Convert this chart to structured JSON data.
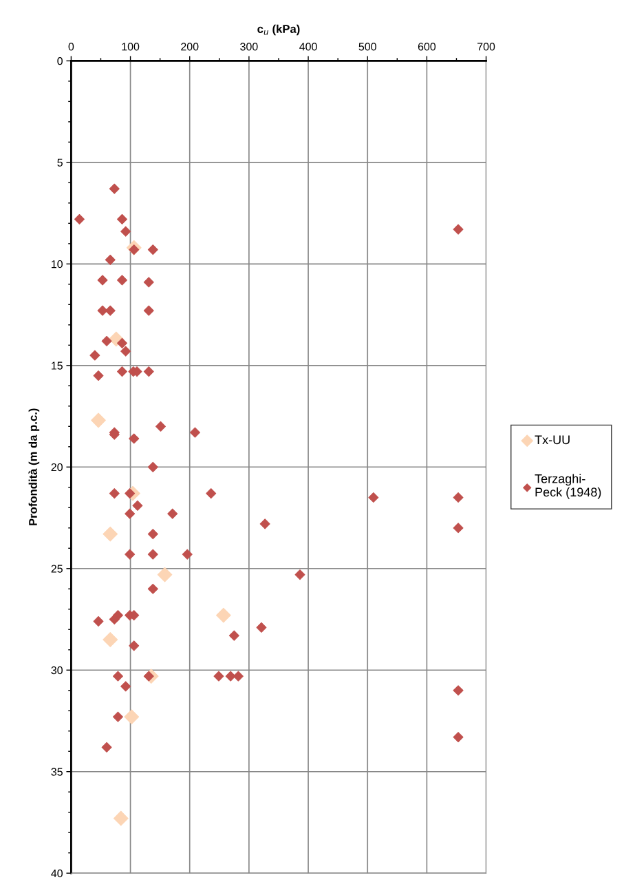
{
  "chart_data": {
    "type": "scatter",
    "xlabel": "c$_{u}$ (kPa)",
    "ylabel": "Profondità (m da p.c.)",
    "xlim": [
      0,
      700
    ],
    "ylim": [
      40,
      0
    ],
    "xticks": [
      0,
      {
        "value": 50,
        "label": null
      },
      100,
      {
        "value": 150,
        "label": null
      },
      200,
      {
        "value": 250,
        "label": null
      },
      300,
      {
        "value": 350,
        "label": null
      },
      400,
      {
        "value": 450,
        "label": null
      },
      500,
      {
        "value": 550,
        "label": null
      },
      600,
      {
        "value": 650,
        "label": null
      },
      700
    ],
    "yticks": [
      0,
      {
        "value": 1,
        "label": null
      },
      {
        "value": 2,
        "label": null
      },
      {
        "value": 3,
        "label": null
      },
      {
        "value": 4,
        "label": null
      },
      5,
      {
        "value": 6,
        "label": null
      },
      {
        "value": 7,
        "label": null
      },
      {
        "value": 8,
        "label": null
      },
      {
        "value": 9,
        "label": null
      },
      10,
      {
        "value": 11,
        "label": null
      },
      {
        "value": 12,
        "label": null
      },
      {
        "value": 13,
        "label": null
      },
      {
        "value": 14,
        "label": null
      },
      15,
      {
        "value": 16,
        "label": null
      },
      {
        "value": 17,
        "label": null
      },
      {
        "value": 18,
        "label": null
      },
      {
        "value": 19,
        "label": null
      },
      20,
      {
        "value": 21,
        "label": null
      },
      {
        "value": 22,
        "label": null
      },
      {
        "value": 23,
        "label": null
      },
      {
        "value": 24,
        "label": null
      },
      25,
      {
        "value": 26,
        "label": null
      },
      {
        "value": 27,
        "label": null
      },
      {
        "value": 28,
        "label": null
      },
      {
        "value": 29,
        "label": null
      },
      30,
      {
        "value": 31,
        "label": null
      },
      {
        "value": 32,
        "label": null
      },
      {
        "value": 33,
        "label": null
      },
      {
        "value": 34,
        "label": null
      },
      35,
      {
        "value": 36,
        "label": null
      },
      {
        "value": 37,
        "label": null
      },
      {
        "value": 38,
        "label": null
      },
      {
        "value": 39,
        "label": null
      },
      40
    ],
    "grid": true,
    "legend": "right",
    "marker": "diamond",
    "series": [
      {
        "name": "Tx-UU",
        "color": "#fcd5b5",
        "x": [
          106,
          76,
          46,
          104,
          66,
          158,
          257,
          66,
          135,
          102,
          84
        ],
        "values": [
          9.2,
          13.7,
          17.7,
          21.3,
          23.3,
          25.3,
          27.3,
          28.5,
          30.3,
          32.3,
          37.3
        ]
      },
      {
        "name": "Terzaghi-\nPeck (1948)",
        "color": "#c0504d",
        "x": [
          73,
          14,
          86,
          92,
          106,
          138,
          66,
          53,
          86,
          131,
          53,
          66,
          131,
          60,
          86,
          92,
          40,
          86,
          105,
          111,
          131,
          46,
          151,
          209,
          73,
          73,
          106,
          138,
          73,
          99,
          112,
          99,
          171,
          138,
          99,
          138,
          196,
          138,
          79,
          73,
          46,
          99,
          106,
          106,
          79,
          131,
          92,
          79,
          60,
          236,
          510,
          653,
          327,
          653,
          386,
          321,
          275,
          249,
          269,
          282,
          653,
          653,
          653
        ],
        "values": [
          6.3,
          7.8,
          7.8,
          8.4,
          9.3,
          9.3,
          9.8,
          10.8,
          10.8,
          10.9,
          12.3,
          12.3,
          12.3,
          13.8,
          13.9,
          14.3,
          14.5,
          15.3,
          15.3,
          15.3,
          15.3,
          15.5,
          18.0,
          18.3,
          18.3,
          18.4,
          18.6,
          20.0,
          21.3,
          21.3,
          21.9,
          22.3,
          22.3,
          23.3,
          24.3,
          24.3,
          24.3,
          26.0,
          27.3,
          27.5,
          27.6,
          27.3,
          27.3,
          28.8,
          30.3,
          30.3,
          30.8,
          32.3,
          33.8,
          21.3,
          21.5,
          21.5,
          22.8,
          23.0,
          25.3,
          27.9,
          28.3,
          30.3,
          30.3,
          30.3,
          31.0,
          8.3,
          33.3
        ]
      }
    ]
  }
}
